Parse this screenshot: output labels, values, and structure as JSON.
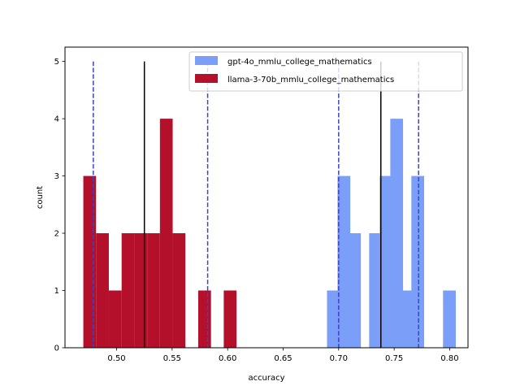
{
  "chart_data": {
    "type": "histogram",
    "title": "",
    "xlabel": "accuracy",
    "ylabel": "count",
    "xlim": [
      0.4535,
      0.8165
    ],
    "ylim": [
      0,
      5.25
    ],
    "xticks": [
      0.5,
      0.55,
      0.6,
      0.65,
      0.7,
      0.75,
      0.8
    ],
    "xtick_labels": [
      "0.50",
      "0.55",
      "0.60",
      "0.65",
      "0.70",
      "0.75",
      "0.80"
    ],
    "yticks": [
      0,
      1,
      2,
      3,
      4,
      5
    ],
    "ytick_labels": [
      "0",
      "1",
      "2",
      "3",
      "4",
      "5"
    ],
    "bin_width": 0.0115,
    "series": [
      {
        "name": "gpt-4o_mmlu_college_mathematics",
        "color": "#7b9ff8",
        "bins": [
          {
            "start": 0.6895,
            "count": 1
          },
          {
            "start": 0.699,
            "count": 3
          },
          {
            "start": 0.7085,
            "count": 2
          },
          {
            "start": 0.7275,
            "count": 2
          },
          {
            "start": 0.737,
            "count": 3
          },
          {
            "start": 0.7465,
            "count": 4
          },
          {
            "start": 0.756,
            "count": 1
          },
          {
            "start": 0.7655,
            "count": 3
          },
          {
            "start": 0.794,
            "count": 1
          }
        ],
        "mean": 0.738,
        "ci": [
          0.7,
          0.772
        ]
      },
      {
        "name": "llama-3-70b_mmlu_college_mathematics",
        "color": "#b40f2b",
        "bins": [
          {
            "start": 0.47,
            "count": 3
          },
          {
            "start": 0.4815,
            "count": 2
          },
          {
            "start": 0.493,
            "count": 1
          },
          {
            "start": 0.5045,
            "count": 2
          },
          {
            "start": 0.516,
            "count": 2
          },
          {
            "start": 0.5275,
            "count": 2
          },
          {
            "start": 0.539,
            "count": 4
          },
          {
            "start": 0.5505,
            "count": 2
          },
          {
            "start": 0.5735,
            "count": 1
          },
          {
            "start": 0.5965,
            "count": 1
          }
        ],
        "mean": 0.525,
        "ci": [
          0.479,
          0.582
        ]
      }
    ],
    "mean_line_color": "#000000",
    "ci_line_color": "#3a45c8",
    "legend": {
      "location": "upper right",
      "entries": [
        {
          "label": "gpt-4o_mmlu_college_mathematics",
          "color": "#7b9ff8"
        },
        {
          "label": "llama-3-70b_mmlu_college_mathematics",
          "color": "#b40f2b"
        }
      ]
    }
  }
}
